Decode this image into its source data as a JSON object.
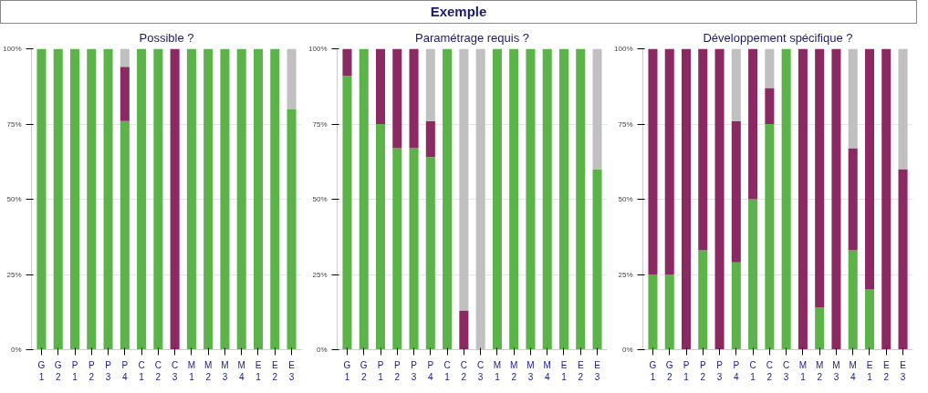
{
  "chart_data": [
    {
      "type": "other",
      "title": "Exemple"
    },
    {
      "type": "bar",
      "title": "Possible ?",
      "stacked": true,
      "grid": "y",
      "categories": [
        "G\n1",
        "G\n2",
        "P\n1",
        "P\n2",
        "P\n3",
        "P\n4",
        "C\n1",
        "C\n2",
        "C\n3",
        "M\n1",
        "M\n2",
        "M\n3",
        "M\n4",
        "E\n1",
        "E\n2",
        "E\n3"
      ],
      "ylim": [
        0,
        100
      ],
      "yticks": [
        {
          "value": 0,
          "label": "0%"
        },
        {
          "value": 25,
          "label": "25%"
        },
        {
          "value": 50,
          "label": "50%"
        },
        {
          "value": 75,
          "label": "75%"
        },
        {
          "value": 100,
          "label": "100%"
        }
      ],
      "series": [
        {
          "color": "#5bb34a",
          "values": [
            100,
            100,
            100,
            100,
            100,
            76,
            100,
            100,
            0,
            100,
            100,
            100,
            100,
            100,
            100,
            80
          ]
        },
        {
          "color": "#8b2a62",
          "values": [
            0,
            0,
            0,
            0,
            0,
            18,
            0,
            0,
            100,
            0,
            0,
            0,
            0,
            0,
            0,
            0
          ]
        },
        {
          "color": "#c0c0c0",
          "values": [
            0,
            0,
            0,
            0,
            0,
            6,
            0,
            0,
            0,
            0,
            0,
            0,
            0,
            0,
            0,
            20
          ]
        }
      ]
    },
    {
      "type": "bar",
      "title": "Paramétrage requis ?",
      "stacked": true,
      "grid": "y",
      "categories": [
        "G\n1",
        "G\n2",
        "P\n1",
        "P\n2",
        "P\n3",
        "P\n4",
        "C\n1",
        "C\n2",
        "C\n3",
        "M\n1",
        "M\n2",
        "M\n3",
        "M\n4",
        "E\n1",
        "E\n2",
        "E\n3"
      ],
      "ylim": [
        0,
        100
      ],
      "yticks": [
        {
          "value": 0,
          "label": "0%"
        },
        {
          "value": 25,
          "label": "25%"
        },
        {
          "value": 50,
          "label": "50%"
        },
        {
          "value": 75,
          "label": "75%"
        },
        {
          "value": 100,
          "label": "100%"
        }
      ],
      "series": [
        {
          "color": "#5bb34a",
          "values": [
            91,
            100,
            75,
            67,
            67,
            64,
            100,
            0,
            0,
            100,
            100,
            100,
            100,
            100,
            100,
            60
          ]
        },
        {
          "color": "#8b2a62",
          "values": [
            9,
            0,
            25,
            33,
            33,
            12,
            0,
            13,
            0,
            0,
            0,
            0,
            0,
            0,
            0,
            0
          ]
        },
        {
          "color": "#c0c0c0",
          "values": [
            0,
            0,
            0,
            0,
            0,
            24,
            0,
            87,
            100,
            0,
            0,
            0,
            0,
            0,
            0,
            40
          ]
        }
      ]
    },
    {
      "type": "bar",
      "title": "Développement spécifique ?",
      "stacked": true,
      "grid": "y",
      "categories": [
        "G\n1",
        "G\n2",
        "P\n1",
        "P\n2",
        "P\n3",
        "P\n4",
        "C\n1",
        "C\n2",
        "C\n3",
        "M\n1",
        "M\n2",
        "M\n3",
        "M\n4",
        "E\n1",
        "E\n2",
        "E\n3"
      ],
      "ylim": [
        0,
        100
      ],
      "yticks": [
        {
          "value": 0,
          "label": "0%"
        },
        {
          "value": 25,
          "label": "25%"
        },
        {
          "value": 50,
          "label": "50%"
        },
        {
          "value": 75,
          "label": "75%"
        },
        {
          "value": 100,
          "label": "100%"
        }
      ],
      "series": [
        {
          "color": "#5bb34a",
          "values": [
            25,
            25,
            0,
            33,
            0,
            29,
            50,
            75,
            100,
            0,
            14,
            0,
            33,
            20,
            0,
            0
          ]
        },
        {
          "color": "#8b2a62",
          "values": [
            75,
            75,
            100,
            67,
            100,
            47,
            50,
            12,
            0,
            100,
            86,
            100,
            34,
            80,
            100,
            60
          ]
        },
        {
          "color": "#c0c0c0",
          "values": [
            0,
            0,
            0,
            0,
            0,
            24,
            0,
            13,
            0,
            0,
            0,
            0,
            33,
            0,
            0,
            40
          ]
        }
      ]
    }
  ]
}
